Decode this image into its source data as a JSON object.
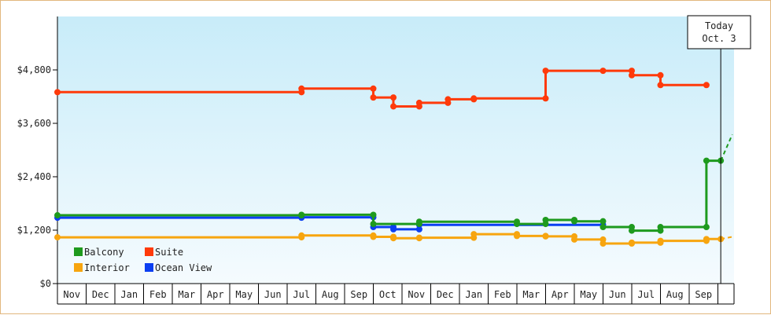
{
  "chart_data": {
    "type": "line",
    "title": "",
    "xlabel": "",
    "ylabel": "",
    "ylim": [
      0,
      6000
    ],
    "y_ticks": [
      0,
      1200,
      2400,
      3600,
      4800
    ],
    "y_tick_labels": [
      "$0",
      "$1,200",
      "$2,400",
      "$3,600",
      "$4,800"
    ],
    "x_ticks": [
      "Nov",
      "Dec",
      "Jan",
      "Feb",
      "Mar",
      "Apr",
      "May",
      "Jun",
      "Jul",
      "Aug",
      "Sep",
      "Oct",
      "Nov",
      "Dec",
      "Jan",
      "Feb",
      "Mar",
      "Apr",
      "May",
      "Jun",
      "Jul",
      "Aug",
      "Sep"
    ],
    "x_range": [
      "Nov",
      "Oct"
    ],
    "grid": false,
    "legend_position": "bottom-left",
    "today_label": [
      "Today",
      "Oct. 3"
    ],
    "today_x": 23.1,
    "series": [
      {
        "name": "Balcony",
        "color": "#1e9a1e",
        "points": [
          [
            0.0,
            1535
          ],
          [
            8.5,
            1535
          ],
          [
            8.5,
            1545
          ],
          [
            11.0,
            1545
          ],
          [
            11.0,
            1340
          ],
          [
            12.6,
            1340
          ],
          [
            12.6,
            1390
          ],
          [
            16.0,
            1390
          ],
          [
            16.0,
            1340
          ],
          [
            17.0,
            1340
          ],
          [
            17.0,
            1430
          ],
          [
            18.0,
            1430
          ],
          [
            18.0,
            1400
          ],
          [
            19.0,
            1400
          ],
          [
            19.0,
            1270
          ],
          [
            20.0,
            1270
          ],
          [
            20.0,
            1190
          ],
          [
            21.0,
            1190
          ],
          [
            21.0,
            1270
          ],
          [
            22.6,
            1270
          ],
          [
            22.6,
            2760
          ],
          [
            23.1,
            2760
          ]
        ],
        "projection": [
          [
            23.1,
            2760
          ],
          [
            23.5,
            3350
          ]
        ]
      },
      {
        "name": "Suite",
        "color": "#ff3a0a",
        "points": [
          [
            0.0,
            4300
          ],
          [
            8.5,
            4300
          ],
          [
            8.5,
            4380
          ],
          [
            11.0,
            4380
          ],
          [
            11.0,
            4180
          ],
          [
            11.7,
            4180
          ],
          [
            11.7,
            3980
          ],
          [
            12.6,
            3980
          ],
          [
            12.6,
            4060
          ],
          [
            13.6,
            4060
          ],
          [
            13.6,
            4140
          ],
          [
            14.5,
            4140
          ],
          [
            14.5,
            4160
          ],
          [
            17.0,
            4160
          ],
          [
            17.0,
            4780
          ],
          [
            19.0,
            4780
          ],
          [
            19.0,
            4780
          ],
          [
            20.0,
            4780
          ],
          [
            20.0,
            4680
          ],
          [
            21.0,
            4680
          ],
          [
            21.0,
            4460
          ],
          [
            22.6,
            4460
          ]
        ]
      },
      {
        "name": "Interior",
        "color": "#f7a50f",
        "points": [
          [
            0.0,
            1040
          ],
          [
            8.5,
            1040
          ],
          [
            8.5,
            1080
          ],
          [
            11.0,
            1080
          ],
          [
            11.0,
            1050
          ],
          [
            11.7,
            1050
          ],
          [
            11.7,
            1020
          ],
          [
            12.6,
            1020
          ],
          [
            12.6,
            1030
          ],
          [
            14.5,
            1030
          ],
          [
            14.5,
            1110
          ],
          [
            16.0,
            1110
          ],
          [
            16.0,
            1070
          ],
          [
            17.0,
            1070
          ],
          [
            17.0,
            1060
          ],
          [
            18.0,
            1060
          ],
          [
            18.0,
            990
          ],
          [
            19.0,
            990
          ],
          [
            19.0,
            900
          ],
          [
            20.0,
            900
          ],
          [
            20.0,
            920
          ],
          [
            21.0,
            920
          ],
          [
            21.0,
            960
          ],
          [
            22.6,
            960
          ],
          [
            22.6,
            1000
          ],
          [
            23.1,
            1000
          ]
        ],
        "projection": [
          [
            23.1,
            1000
          ],
          [
            23.5,
            1050
          ]
        ]
      },
      {
        "name": "Ocean View",
        "color": "#0b3ff2",
        "points": [
          [
            0.0,
            1480
          ],
          [
            8.5,
            1480
          ],
          [
            8.5,
            1490
          ],
          [
            11.0,
            1490
          ],
          [
            11.0,
            1270
          ],
          [
            11.7,
            1270
          ],
          [
            11.7,
            1220
          ],
          [
            12.6,
            1220
          ],
          [
            12.6,
            1320
          ],
          [
            19.0,
            1320
          ]
        ]
      }
    ]
  }
}
